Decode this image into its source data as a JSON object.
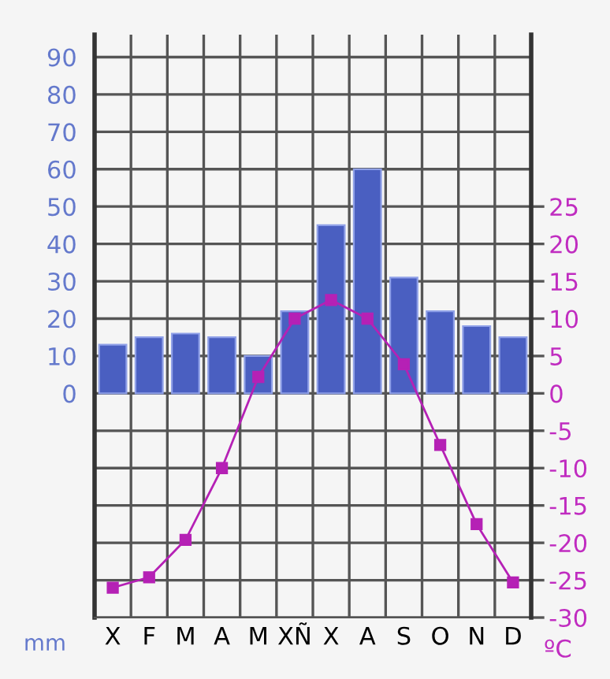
{
  "chart_data": {
    "type": "bar",
    "categories": [
      "X",
      "F",
      "M",
      "A",
      "M",
      "XÑ",
      "X",
      "A",
      "S",
      "O",
      "N",
      "D"
    ],
    "ylabel": "mm",
    "y2label": "ºC",
    "series": [
      {
        "color": "#4a5fc1",
        "values": [
          13,
          15,
          16,
          15,
          10,
          22,
          45,
          60,
          31,
          22,
          18,
          15
        ]
      },
      {
        "type": "line",
        "axis": "y2",
        "color": "#b521b5",
        "values": [
          -26,
          -24.6,
          -19.6,
          -10,
          2.2,
          10,
          12.5,
          10,
          3.9,
          -6.9,
          -17.5,
          -25.3
        ]
      }
    ],
    "ylim": [
      -60,
      96
    ],
    "yticks": [
      {
        "value": -60,
        "label": null
      },
      {
        "value": -50,
        "label": null
      },
      {
        "value": -40,
        "label": null
      },
      {
        "value": -30,
        "label": null
      },
      {
        "value": -20,
        "label": null
      },
      {
        "value": -10,
        "label": null
      },
      0,
      10,
      20,
      30,
      40,
      50,
      60,
      70,
      80,
      90
    ],
    "y2lim": [
      -30,
      48
    ],
    "y2ticks": [
      -30,
      -25,
      -20,
      -15,
      -10,
      -5,
      0,
      5,
      10,
      15,
      20,
      25
    ],
    "grid": true,
    "marker": "square",
    "line_style": "solid",
    "legend": false
  }
}
